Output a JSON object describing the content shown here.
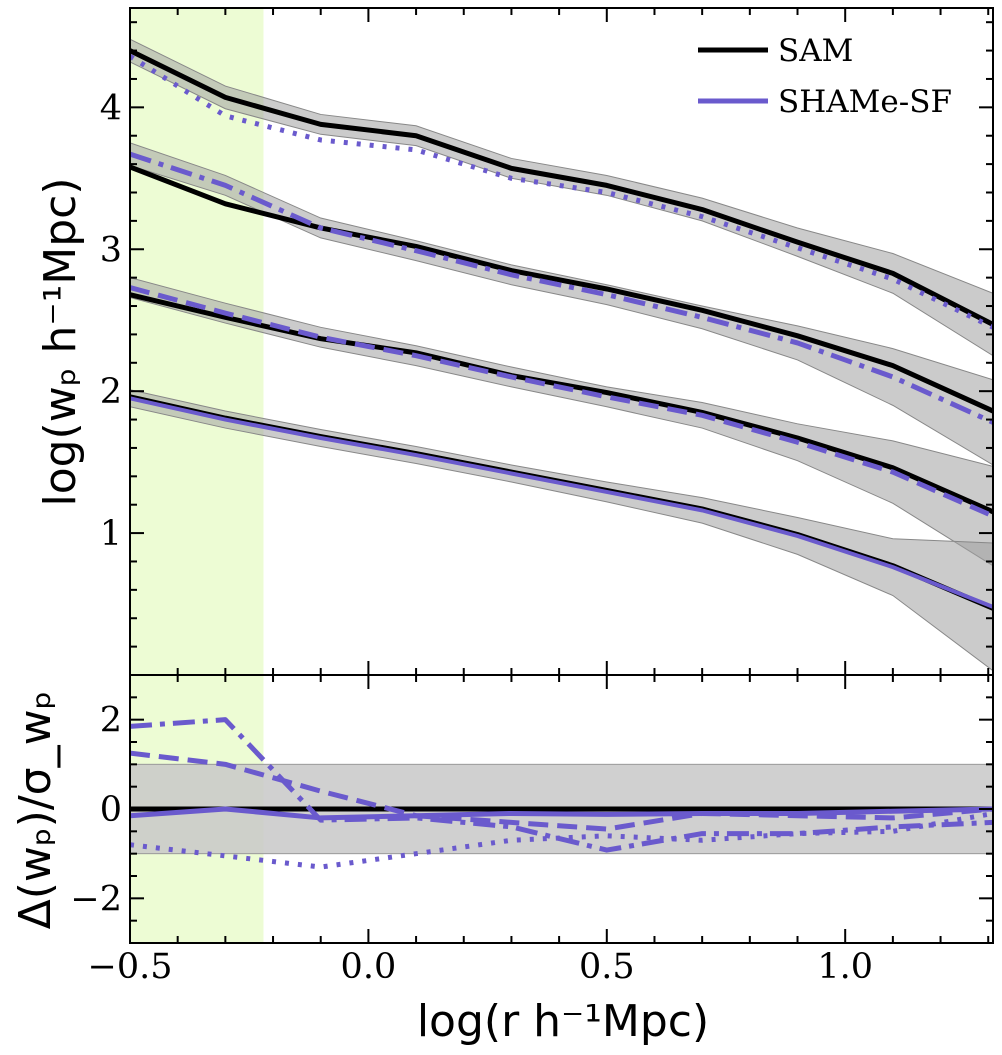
{
  "chart_data": [
    {
      "panel": "top",
      "type": "line",
      "xlabel": "log(r h⁻¹Mpc)",
      "ylabel": "log(wₚ h⁻¹Mpc)",
      "xlim": [
        -0.5,
        1.31
      ],
      "ylim": [
        0.0,
        4.7
      ],
      "yticks": [
        1,
        2,
        3,
        4
      ],
      "yticklabels": [
        "1",
        "2",
        "3",
        "4"
      ],
      "x": [
        -0.5,
        -0.3,
        -0.1,
        0.1,
        0.3,
        0.5,
        0.7,
        0.9,
        1.1,
        1.31
      ],
      "shaded_x_range": [
        -0.5,
        -0.22
      ],
      "legend": {
        "position": "top-right",
        "entries": [
          "SAM",
          "SHAMe-SF"
        ]
      },
      "series": [
        {
          "group": 1,
          "model": "SAM",
          "linestyle": "solid",
          "values": [
            4.4,
            4.07,
            3.88,
            3.8,
            3.57,
            3.45,
            3.28,
            3.05,
            2.83,
            2.47
          ],
          "band": [
            0.08,
            0.08,
            0.07,
            0.07,
            0.07,
            0.07,
            0.08,
            0.1,
            0.14,
            0.22
          ]
        },
        {
          "group": 1,
          "model": "SHAMe-SF",
          "linestyle": "dotted",
          "values": [
            4.36,
            3.94,
            3.77,
            3.7,
            3.5,
            3.4,
            3.23,
            3.01,
            2.79,
            2.45
          ]
        },
        {
          "group": 2,
          "model": "SAM",
          "linestyle": "solid",
          "values": [
            3.58,
            3.32,
            3.15,
            3.02,
            2.85,
            2.72,
            2.57,
            2.39,
            2.18,
            1.86
          ]
        },
        {
          "group": 2,
          "model": "SHAMe-SF",
          "linestyle": "dashdot",
          "values": [
            3.67,
            3.45,
            3.15,
            2.99,
            2.82,
            2.68,
            2.52,
            2.34,
            2.1,
            1.78
          ],
          "band": [
            0.08,
            0.07,
            0.07,
            0.07,
            0.07,
            0.07,
            0.08,
            0.12,
            0.2,
            0.3
          ]
        },
        {
          "group": 3,
          "model": "SAM",
          "linestyle": "solid",
          "values": [
            2.68,
            2.52,
            2.37,
            2.27,
            2.11,
            1.99,
            1.85,
            1.67,
            1.46,
            1.15
          ]
        },
        {
          "group": 3,
          "model": "SHAMe-SF",
          "linestyle": "dashed",
          "values": [
            2.73,
            2.55,
            2.38,
            2.25,
            2.1,
            1.96,
            1.83,
            1.64,
            1.43,
            1.12
          ],
          "band": [
            0.07,
            0.07,
            0.07,
            0.07,
            0.07,
            0.07,
            0.09,
            0.13,
            0.22,
            0.35
          ]
        },
        {
          "group": 4,
          "model": "SAM",
          "linestyle": "solid",
          "values": [
            1.96,
            1.81,
            1.68,
            1.56,
            1.43,
            1.3,
            1.17,
            0.99,
            0.77,
            0.47
          ]
        },
        {
          "group": 4,
          "model": "SHAMe-SF",
          "linestyle": "solid",
          "values": [
            1.95,
            1.8,
            1.67,
            1.55,
            1.42,
            1.29,
            1.16,
            0.98,
            0.76,
            0.48
          ],
          "band": [
            0.06,
            0.06,
            0.06,
            0.06,
            0.06,
            0.07,
            0.09,
            0.13,
            0.2,
            0.45
          ]
        }
      ]
    },
    {
      "panel": "bottom",
      "type": "line",
      "xlabel": "log(r h⁻¹Mpc)",
      "ylabel": "Δ(wₚ)/σ_wₚ",
      "xlim": [
        -0.5,
        1.31
      ],
      "ylim": [
        -3.0,
        3.0
      ],
      "xticks": [
        -0.5,
        0.0,
        0.5,
        1.0
      ],
      "xticklabels": [
        "−0.5",
        "0.0",
        "0.5",
        "1.0"
      ],
      "yticks": [
        -2,
        0,
        2
      ],
      "yticklabels": [
        "−2",
        "0",
        "2"
      ],
      "band": [
        -1,
        1
      ],
      "shaded_x_range": [
        -0.5,
        -0.22
      ],
      "x": [
        -0.5,
        -0.3,
        -0.1,
        0.1,
        0.3,
        0.5,
        0.7,
        0.9,
        1.1,
        1.31
      ],
      "series": [
        {
          "model": "SAM",
          "linestyle": "solid",
          "values": [
            0,
            0,
            0,
            0,
            0,
            0,
            0,
            0,
            0,
            0
          ]
        },
        {
          "model": "SHAMe-SF",
          "linestyle": "dotted",
          "values": [
            -0.8,
            -1.05,
            -1.3,
            -1.0,
            -0.7,
            -0.6,
            -0.7,
            -0.55,
            -0.5,
            -0.1
          ]
        },
        {
          "model": "SHAMe-SF",
          "linestyle": "dashdot",
          "values": [
            1.85,
            2.0,
            -0.25,
            -0.2,
            -0.4,
            -0.92,
            -0.55,
            -0.55,
            -0.4,
            -0.3
          ]
        },
        {
          "model": "SHAMe-SF",
          "linestyle": "dashed",
          "values": [
            1.25,
            1.0,
            0.4,
            -0.15,
            -0.3,
            -0.45,
            -0.1,
            -0.15,
            -0.2,
            0.0
          ]
        },
        {
          "model": "SHAMe-SF",
          "linestyle": "solid",
          "values": [
            -0.15,
            0.0,
            -0.2,
            -0.15,
            -0.1,
            -0.12,
            -0.1,
            -0.1,
            -0.05,
            0.0
          ]
        }
      ]
    }
  ],
  "colors": {
    "sam": "#000000",
    "shame": "#6A5ACD",
    "band": "#c8c8c8",
    "highlight": "#edfcd4"
  }
}
